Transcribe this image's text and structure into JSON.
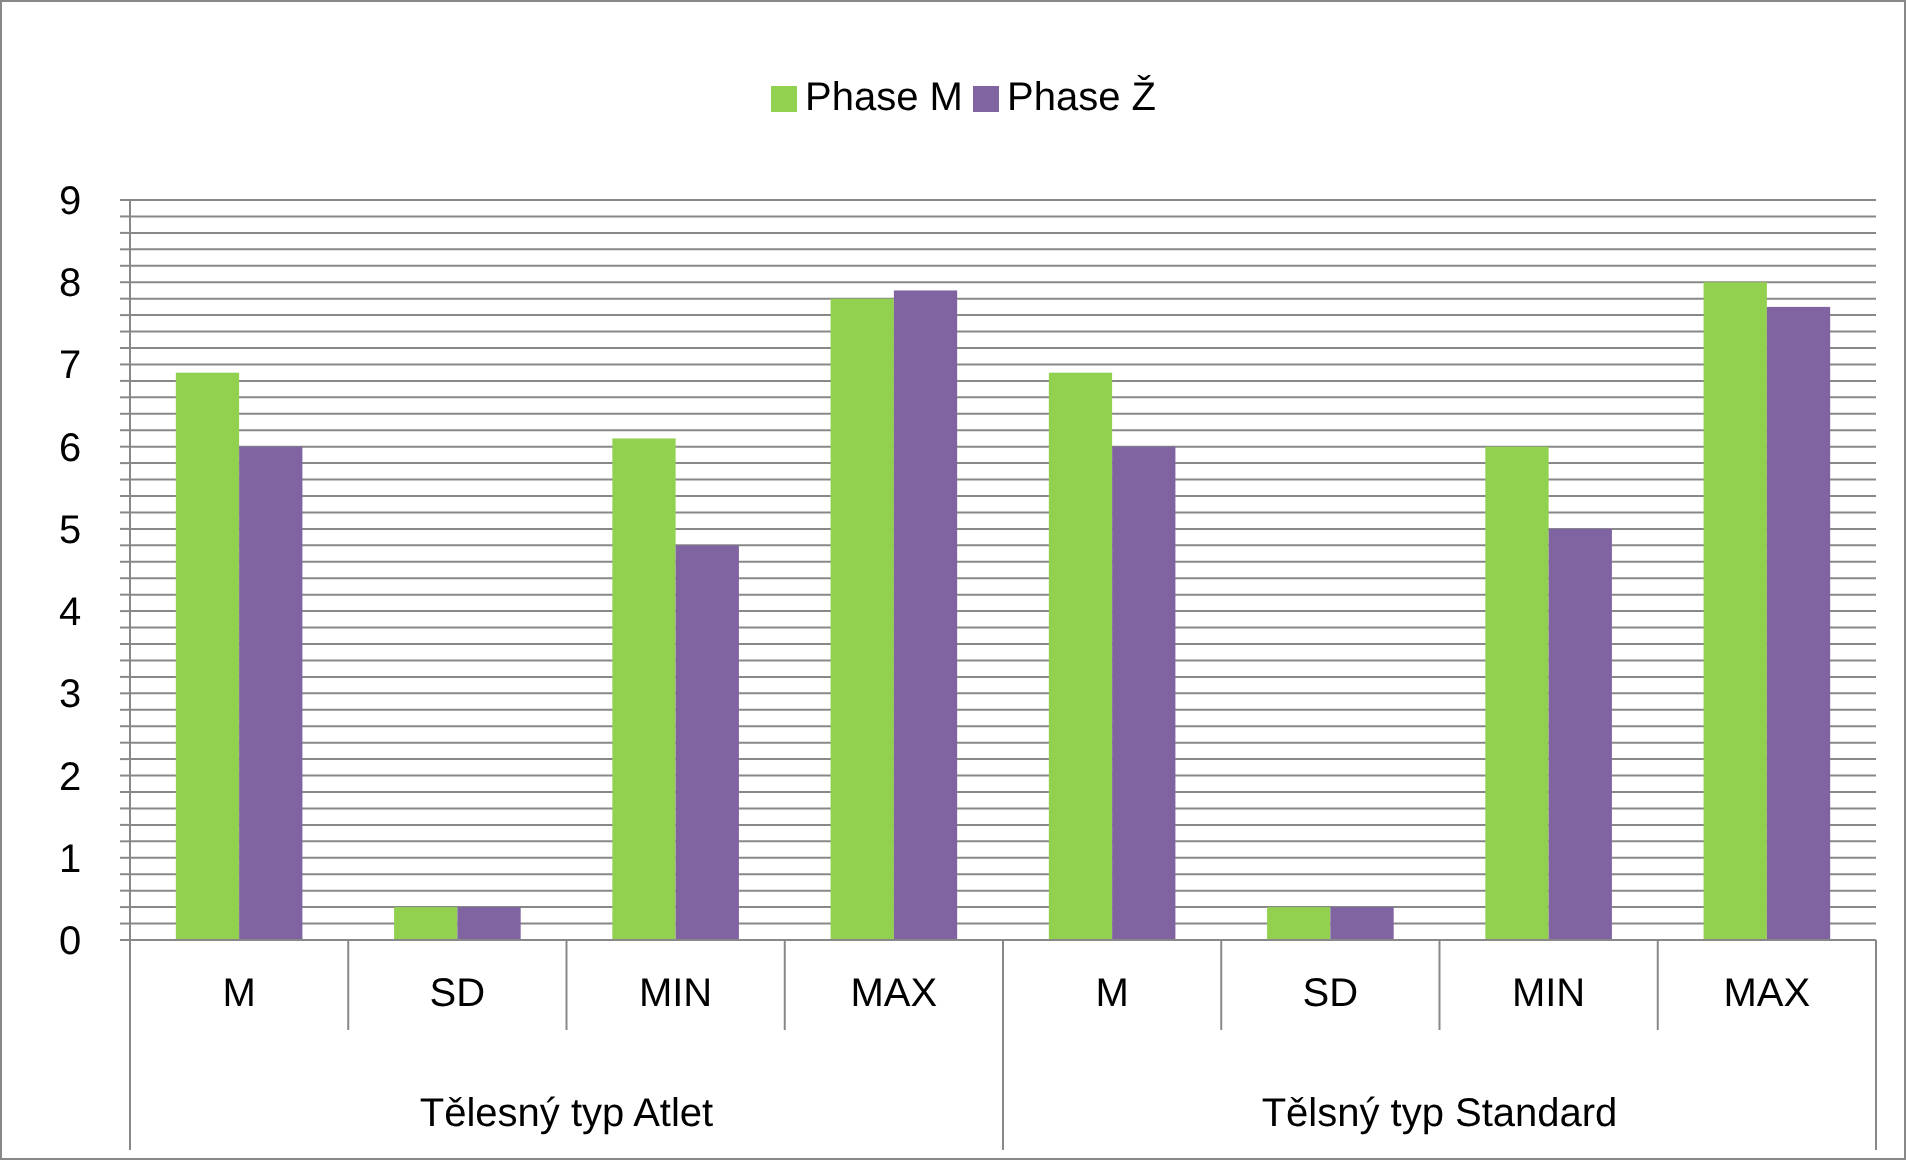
{
  "chart_data": {
    "type": "bar",
    "categories": [
      "M",
      "SD",
      "MIN",
      "MAX",
      "M",
      "SD",
      "MIN",
      "MAX"
    ],
    "series": [
      {
        "name": "Phase M",
        "color": "#92d050",
        "values": [
          6.9,
          0.4,
          6.1,
          7.8,
          6.9,
          0.4,
          6.0,
          8.0
        ]
      },
      {
        "name": "Phase Ž",
        "color": "#8064a2",
        "values": [
          6.0,
          0.4,
          4.8,
          7.9,
          6.0,
          0.4,
          5.0,
          7.7
        ]
      }
    ],
    "annotations": [
      "Tělesný typ Atlet",
      "Tělsný typ Standard"
    ],
    "ylim": [
      0,
      9
    ],
    "yticks": [
      0,
      {
        "value": 0.2,
        "label": null
      },
      {
        "value": 0.4,
        "label": null
      },
      {
        "value": 0.6,
        "label": null
      },
      {
        "value": 0.8,
        "label": null
      },
      1,
      {
        "value": 1.2,
        "label": null
      },
      {
        "value": 1.4,
        "label": null
      },
      {
        "value": 1.6,
        "label": null
      },
      {
        "value": 1.8,
        "label": null
      },
      2,
      {
        "value": 2.2,
        "label": null
      },
      {
        "value": 2.4,
        "label": null
      },
      {
        "value": 2.6,
        "label": null
      },
      {
        "value": 2.8,
        "label": null
      },
      3,
      {
        "value": 3.2,
        "label": null
      },
      {
        "value": 3.4,
        "label": null
      },
      {
        "value": 3.6,
        "label": null
      },
      {
        "value": 3.8,
        "label": null
      },
      4,
      {
        "value": 4.2,
        "label": null
      },
      {
        "value": 4.4,
        "label": null
      },
      {
        "value": 4.6,
        "label": null
      },
      {
        "value": 4.8,
        "label": null
      },
      5,
      {
        "value": 5.2,
        "label": null
      },
      {
        "value": 5.4,
        "label": null
      },
      {
        "value": 5.6,
        "label": null
      },
      {
        "value": 5.8,
        "label": null
      },
      6,
      {
        "value": 6.2,
        "label": null
      },
      {
        "value": 6.4,
        "label": null
      },
      {
        "value": 6.6,
        "label": null
      },
      {
        "value": 6.8,
        "label": null
      },
      7,
      {
        "value": 7.2,
        "label": null
      },
      {
        "value": 7.4,
        "label": null
      },
      {
        "value": 7.6,
        "label": null
      },
      {
        "value": 7.8,
        "label": null
      },
      8,
      {
        "value": 8.2,
        "label": null
      },
      {
        "value": 8.4,
        "label": null
      },
      {
        "value": 8.6,
        "label": null
      },
      {
        "value": 8.8,
        "label": null
      },
      9
    ],
    "grid": true,
    "legend": "top"
  }
}
